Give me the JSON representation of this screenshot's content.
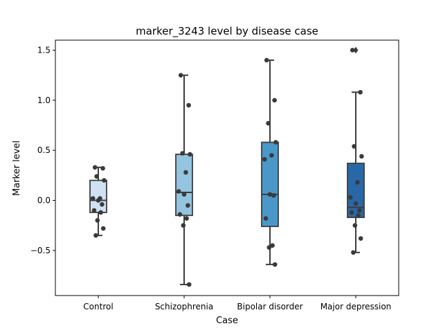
{
  "chart_data": {
    "type": "box",
    "title": "marker_3243 level by disease case",
    "xlabel": "Case",
    "ylabel": "Marker level",
    "ylim": [
      -0.95,
      1.6
    ],
    "yticks": [
      -0.5,
      0.0,
      0.5,
      1.0,
      1.5
    ],
    "ytick_labels": [
      "−0.5",
      "0.0",
      "0.5",
      "1.0",
      "1.5"
    ],
    "categories": [
      "Control",
      "Schizophrenia",
      "Bipolar disorder",
      "Major depression"
    ],
    "colors": [
      "#cfe1f2",
      "#94c4df",
      "#4a98c9",
      "#2868a8"
    ],
    "boxes": [
      {
        "name": "Control",
        "q1": -0.12,
        "median": 0.0,
        "q3": 0.2,
        "whisker_low": -0.35,
        "whisker_high": 0.33,
        "outliers": []
      },
      {
        "name": "Schizophrenia",
        "q1": -0.15,
        "median": 0.08,
        "q3": 0.46,
        "whisker_low": -0.84,
        "whisker_high": 1.25,
        "outliers": []
      },
      {
        "name": "Bipolar disorder",
        "q1": -0.26,
        "median": 0.06,
        "q3": 0.58,
        "whisker_low": -0.64,
        "whisker_high": 1.4,
        "outliers": []
      },
      {
        "name": "Major depression",
        "q1": -0.17,
        "median": -0.07,
        "q3": 0.37,
        "whisker_low": -0.52,
        "whisker_high": 1.08,
        "outliers": [
          1.5
        ]
      }
    ],
    "points": [
      {
        "category": "Control",
        "values": [
          0.33,
          0.32,
          0.24,
          0.2,
          0.02,
          0.02,
          -0.0,
          -0.04,
          -0.1,
          -0.12,
          -0.2,
          -0.28,
          -0.35
        ]
      },
      {
        "category": "Schizophrenia",
        "values": [
          1.25,
          0.95,
          0.47,
          0.46,
          0.28,
          0.09,
          0.06,
          -0.05,
          -0.14,
          -0.18,
          -0.25,
          -0.84
        ]
      },
      {
        "category": "Bipolar disorder",
        "values": [
          1.4,
          1.0,
          0.77,
          0.58,
          0.45,
          0.41,
          0.06,
          0.05,
          -0.18,
          -0.45,
          -0.47,
          -0.64
        ]
      },
      {
        "category": "Major depression",
        "values": [
          1.5,
          1.08,
          0.54,
          0.44,
          0.18,
          0.03,
          -0.03,
          -0.1,
          -0.12,
          -0.15,
          -0.25,
          -0.38,
          -0.52
        ]
      }
    ],
    "grid": false,
    "legend": "none"
  }
}
